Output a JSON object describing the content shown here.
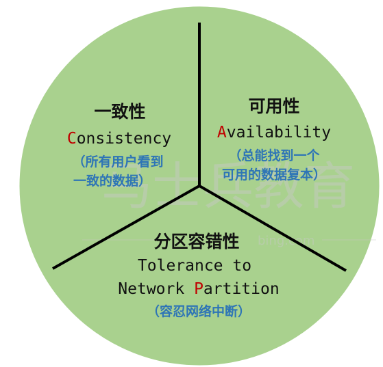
{
  "colors": {
    "circle_fill": "#a9d18e",
    "divider": "#000000",
    "initial_letter": "#c00000",
    "note_text": "#2e75b6"
  },
  "watermark": {
    "text": "马士兵教育",
    "subtext": "bing.com"
  },
  "sections": {
    "consistency": {
      "cn": "一致性",
      "en_initial": "C",
      "en_rest": "onsistency",
      "note_line1": "（所有用户看到",
      "note_line2": "一致的数据）"
    },
    "availability": {
      "cn": "可用性",
      "en_initial": "A",
      "en_rest": "vailability",
      "note_line1": "（总能找到一个",
      "note_line2": "可用的数据复本）"
    },
    "partition": {
      "cn": "分区容错性",
      "en_line1": "Tolerance to",
      "en_line2_pre": "Network ",
      "en_initial": "P",
      "en_line2_rest": "artition",
      "note": "（容忍网络中断）"
    }
  }
}
